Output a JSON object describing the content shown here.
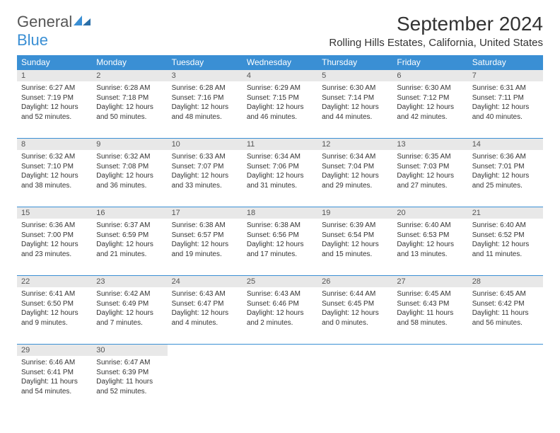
{
  "logo": {
    "word1": "General",
    "word2": "Blue"
  },
  "title": "September 2024",
  "location": "Rolling Hills Estates, California, United States",
  "colors": {
    "header_bg": "#3a8fd4",
    "daynum_bg": "#e8e8e8",
    "border": "#3a8fd4",
    "text": "#333333",
    "logo_accent": "#3a8fd4"
  },
  "dow": [
    "Sunday",
    "Monday",
    "Tuesday",
    "Wednesday",
    "Thursday",
    "Friday",
    "Saturday"
  ],
  "weeks": [
    [
      {
        "num": "1",
        "sunrise": "6:27 AM",
        "sunset": "7:19 PM",
        "dh": "12",
        "dm": "52"
      },
      {
        "num": "2",
        "sunrise": "6:28 AM",
        "sunset": "7:18 PM",
        "dh": "12",
        "dm": "50"
      },
      {
        "num": "3",
        "sunrise": "6:28 AM",
        "sunset": "7:16 PM",
        "dh": "12",
        "dm": "48"
      },
      {
        "num": "4",
        "sunrise": "6:29 AM",
        "sunset": "7:15 PM",
        "dh": "12",
        "dm": "46"
      },
      {
        "num": "5",
        "sunrise": "6:30 AM",
        "sunset": "7:14 PM",
        "dh": "12",
        "dm": "44"
      },
      {
        "num": "6",
        "sunrise": "6:30 AM",
        "sunset": "7:12 PM",
        "dh": "12",
        "dm": "42"
      },
      {
        "num": "7",
        "sunrise": "6:31 AM",
        "sunset": "7:11 PM",
        "dh": "12",
        "dm": "40"
      }
    ],
    [
      {
        "num": "8",
        "sunrise": "6:32 AM",
        "sunset": "7:10 PM",
        "dh": "12",
        "dm": "38"
      },
      {
        "num": "9",
        "sunrise": "6:32 AM",
        "sunset": "7:08 PM",
        "dh": "12",
        "dm": "36"
      },
      {
        "num": "10",
        "sunrise": "6:33 AM",
        "sunset": "7:07 PM",
        "dh": "12",
        "dm": "33"
      },
      {
        "num": "11",
        "sunrise": "6:34 AM",
        "sunset": "7:06 PM",
        "dh": "12",
        "dm": "31"
      },
      {
        "num": "12",
        "sunrise": "6:34 AM",
        "sunset": "7:04 PM",
        "dh": "12",
        "dm": "29"
      },
      {
        "num": "13",
        "sunrise": "6:35 AM",
        "sunset": "7:03 PM",
        "dh": "12",
        "dm": "27"
      },
      {
        "num": "14",
        "sunrise": "6:36 AM",
        "sunset": "7:01 PM",
        "dh": "12",
        "dm": "25"
      }
    ],
    [
      {
        "num": "15",
        "sunrise": "6:36 AM",
        "sunset": "7:00 PM",
        "dh": "12",
        "dm": "23"
      },
      {
        "num": "16",
        "sunrise": "6:37 AM",
        "sunset": "6:59 PM",
        "dh": "12",
        "dm": "21"
      },
      {
        "num": "17",
        "sunrise": "6:38 AM",
        "sunset": "6:57 PM",
        "dh": "12",
        "dm": "19"
      },
      {
        "num": "18",
        "sunrise": "6:38 AM",
        "sunset": "6:56 PM",
        "dh": "12",
        "dm": "17"
      },
      {
        "num": "19",
        "sunrise": "6:39 AM",
        "sunset": "6:54 PM",
        "dh": "12",
        "dm": "15"
      },
      {
        "num": "20",
        "sunrise": "6:40 AM",
        "sunset": "6:53 PM",
        "dh": "12",
        "dm": "13"
      },
      {
        "num": "21",
        "sunrise": "6:40 AM",
        "sunset": "6:52 PM",
        "dh": "12",
        "dm": "11"
      }
    ],
    [
      {
        "num": "22",
        "sunrise": "6:41 AM",
        "sunset": "6:50 PM",
        "dh": "12",
        "dm": "9"
      },
      {
        "num": "23",
        "sunrise": "6:42 AM",
        "sunset": "6:49 PM",
        "dh": "12",
        "dm": "7"
      },
      {
        "num": "24",
        "sunrise": "6:43 AM",
        "sunset": "6:47 PM",
        "dh": "12",
        "dm": "4"
      },
      {
        "num": "25",
        "sunrise": "6:43 AM",
        "sunset": "6:46 PM",
        "dh": "12",
        "dm": "2"
      },
      {
        "num": "26",
        "sunrise": "6:44 AM",
        "sunset": "6:45 PM",
        "dh": "12",
        "dm": "0"
      },
      {
        "num": "27",
        "sunrise": "6:45 AM",
        "sunset": "6:43 PM",
        "dh": "11",
        "dm": "58"
      },
      {
        "num": "28",
        "sunrise": "6:45 AM",
        "sunset": "6:42 PM",
        "dh": "11",
        "dm": "56"
      }
    ],
    [
      {
        "num": "29",
        "sunrise": "6:46 AM",
        "sunset": "6:41 PM",
        "dh": "11",
        "dm": "54"
      },
      {
        "num": "30",
        "sunrise": "6:47 AM",
        "sunset": "6:39 PM",
        "dh": "11",
        "dm": "52"
      },
      null,
      null,
      null,
      null,
      null
    ]
  ]
}
